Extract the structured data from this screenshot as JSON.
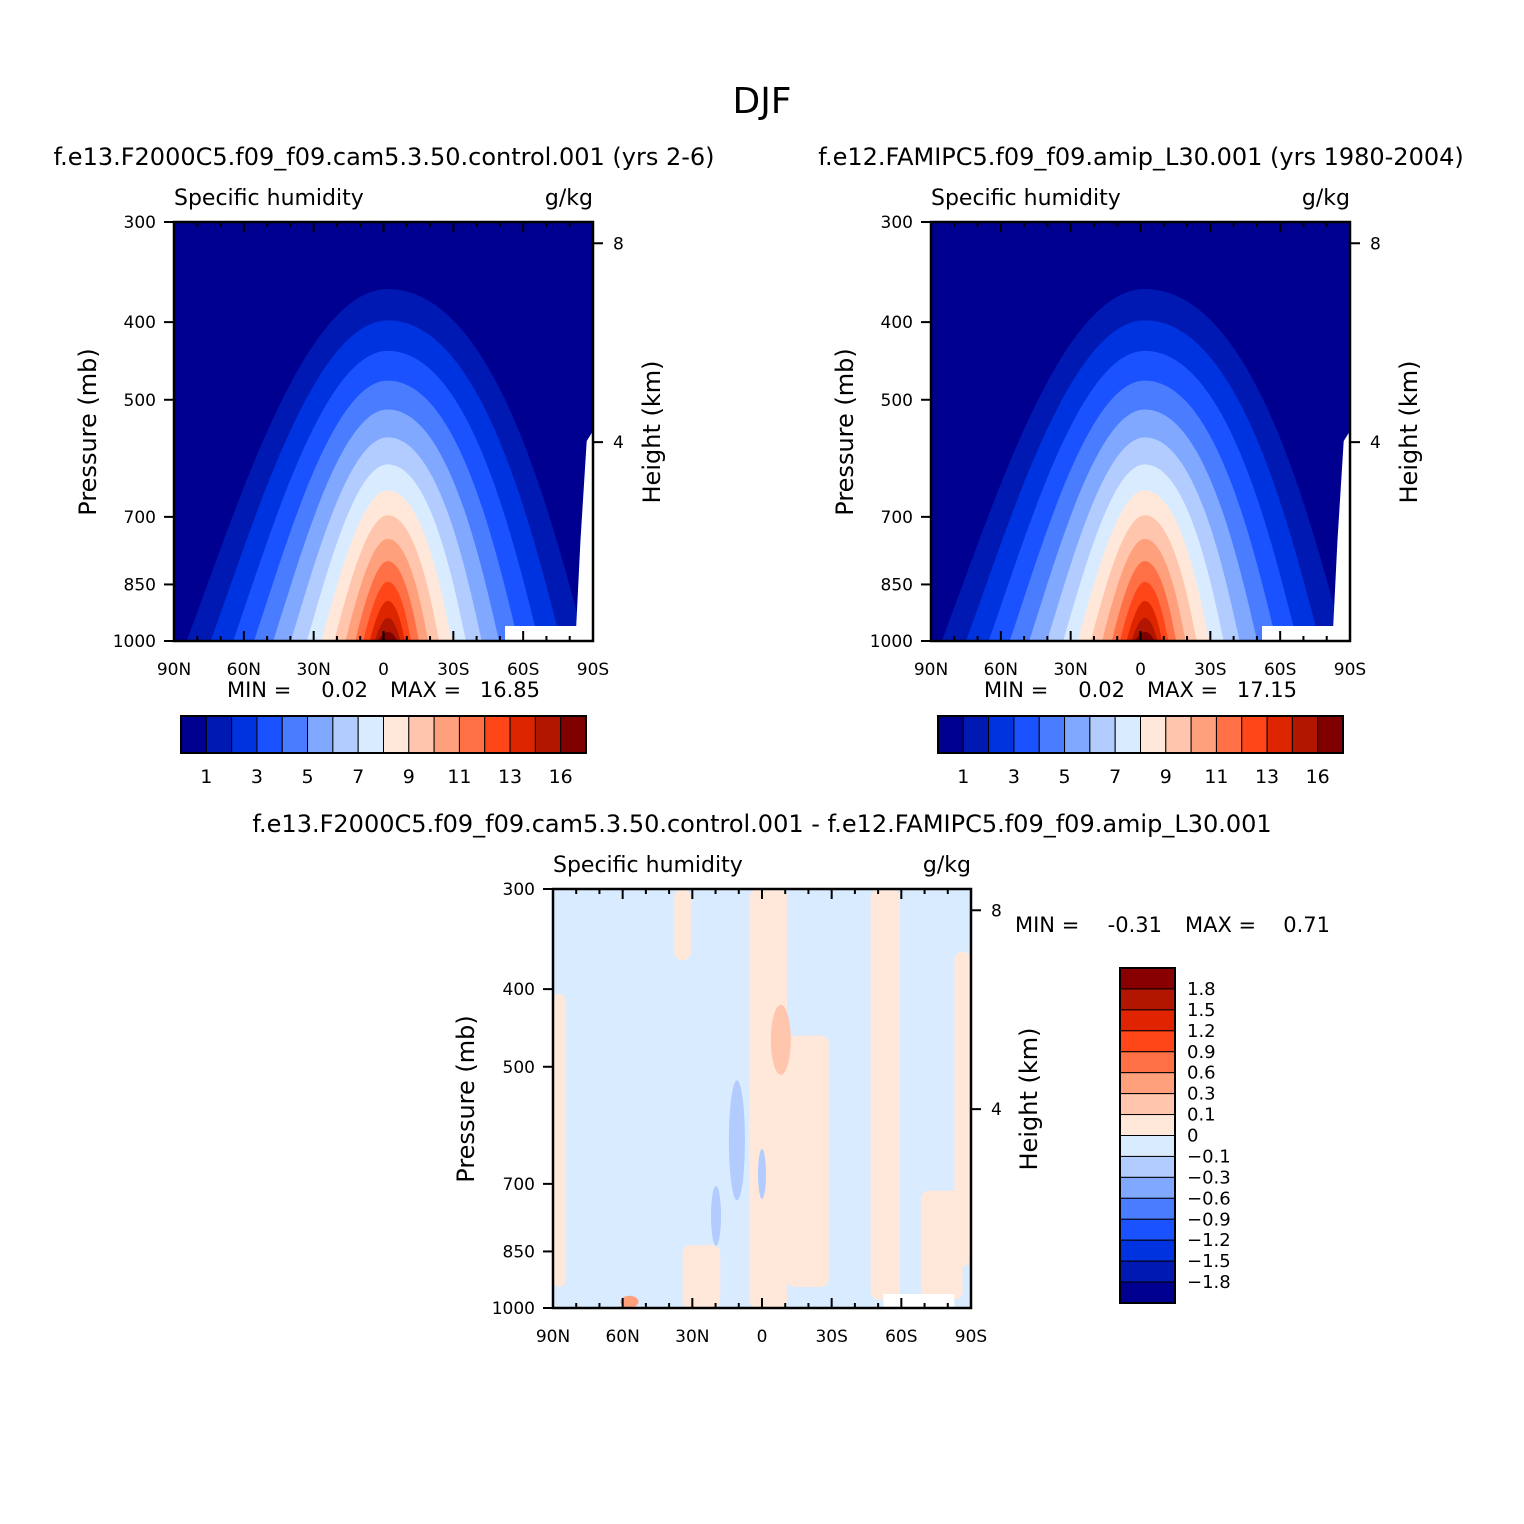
{
  "page_title": "DJF",
  "chart_data": [
    {
      "type": "heatmap",
      "id": "control",
      "title": "f.e13.F2000C5.f09_f09.cam5.3.50.control.001 (yrs 2-6)",
      "left_label": "Specific humidity",
      "right_label": "g/kg",
      "ylabel": "Pressure (mb)",
      "y2label": "Height (km)",
      "xticks": [
        "90N",
        "60N",
        "30N",
        "0",
        "30S",
        "60S",
        "90S"
      ],
      "yticks": [
        "300",
        "400",
        "500",
        "700",
        "850",
        "1000"
      ],
      "y2ticks": [
        "8",
        "4"
      ],
      "stats": {
        "min_label": "MIN =",
        "min": "0.02",
        "max_label": "MAX =",
        "max": "16.85"
      },
      "colorbar_labels": [
        "1",
        "3",
        "5",
        "7",
        "9",
        "11",
        "13",
        "16"
      ],
      "xlim": [
        90,
        -90
      ],
      "ylim": [
        1000,
        300
      ],
      "peak_value": 16.85,
      "peak_latitude": 0
    },
    {
      "type": "heatmap",
      "id": "amip",
      "title": "f.e12.FAMIPC5.f09_f09.amip_L30.001 (yrs 1980-2004)",
      "left_label": "Specific humidity",
      "right_label": "g/kg",
      "ylabel": "Pressure (mb)",
      "y2label": "Height (km)",
      "xticks": [
        "90N",
        "60N",
        "30N",
        "0",
        "30S",
        "60S",
        "90S"
      ],
      "yticks": [
        "300",
        "400",
        "500",
        "700",
        "850",
        "1000"
      ],
      "y2ticks": [
        "8",
        "4"
      ],
      "stats": {
        "min_label": "MIN =",
        "min": "0.02",
        "max_label": "MAX =",
        "max": "17.15"
      },
      "colorbar_labels": [
        "1",
        "3",
        "5",
        "7",
        "9",
        "11",
        "13",
        "16"
      ],
      "xlim": [
        90,
        -90
      ],
      "ylim": [
        1000,
        300
      ],
      "peak_value": 17.15,
      "peak_latitude": 0
    },
    {
      "type": "heatmap",
      "id": "difference",
      "title": "f.e13.F2000C5.f09_f09.cam5.3.50.control.001 - f.e12.FAMIPC5.f09_f09.amip_L30.001",
      "left_label": "Specific humidity",
      "right_label": "g/kg",
      "ylabel": "Pressure (mb)",
      "y2label": "Height (km)",
      "xticks": [
        "90N",
        "60N",
        "30N",
        "0",
        "30S",
        "60S",
        "90S"
      ],
      "yticks": [
        "300",
        "400",
        "500",
        "700",
        "850",
        "1000"
      ],
      "y2ticks": [
        "8",
        "4"
      ],
      "stats": {
        "min_label": "MIN =",
        "min": "-0.31",
        "max_label": "MAX =",
        "max": "0.71"
      },
      "colorbar_labels": [
        "1.8",
        "1.5",
        "1.2",
        "0.9",
        "0.6",
        "0.3",
        "0.1",
        "0",
        "-0.1",
        "-0.3",
        "-0.6",
        "-0.9",
        "-1.2",
        "-1.5",
        "-1.8"
      ],
      "xlim": [
        90,
        -90
      ],
      "ylim": [
        1000,
        300
      ]
    }
  ],
  "colors": {
    "levels_14": [
      "#000090",
      "#0019b3",
      "#0033e0",
      "#1a52ff",
      "#4a7cff",
      "#80a8ff",
      "#b3ccff",
      "#d9ebff",
      "#ffe8d9",
      "#ffc6ad",
      "#ffa07d",
      "#ff7046",
      "#ff4618",
      "#dd2600",
      "#b31600",
      "#800000"
    ],
    "levels_diff": [
      "#880000",
      "#b31600",
      "#e02300",
      "#ff4618",
      "#ff7046",
      "#ffa07d",
      "#ffc6ad",
      "#ffe8d9",
      "#d9ebff",
      "#b3ccff",
      "#80a8ff",
      "#4a7cff",
      "#1a52ff",
      "#0033e0",
      "#0019b3",
      "#000090"
    ]
  }
}
